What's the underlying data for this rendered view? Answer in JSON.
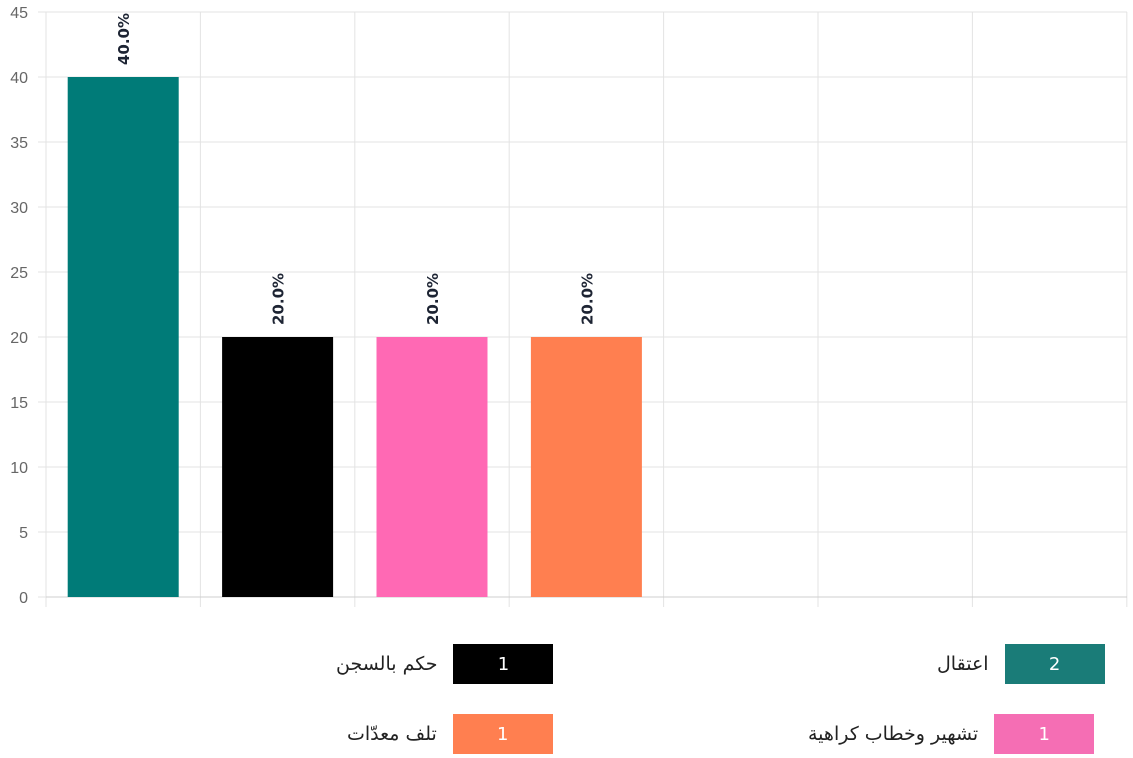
{
  "chart_data": {
    "type": "bar",
    "categories": [
      "اعتقال",
      "حكم بالسجن",
      "تشهير وخطاب كراهية",
      "تلف معدّات"
    ],
    "values": [
      40,
      20,
      20,
      20
    ],
    "counts": [
      2,
      1,
      1,
      1
    ],
    "data_labels": [
      "40.0%",
      "20.0%",
      "20.0%",
      "20.0%"
    ],
    "colors": [
      "#007b78",
      "#000000",
      "#ff69b4",
      "#ff7f50"
    ],
    "ylim": [
      0,
      45
    ],
    "yticks": [
      "0",
      "5",
      "10",
      "15",
      "20",
      "25",
      "30",
      "35",
      "40",
      "45"
    ],
    "grid": true,
    "legend_position": "bottom"
  },
  "legend": {
    "items": [
      {
        "label": "اعتقال",
        "count": "2",
        "color": "#1a7c78"
      },
      {
        "label": "حكم بالسجن",
        "count": "1",
        "color": "#000000"
      },
      {
        "label": "تشهير وخطاب كراهية",
        "count": "1",
        "color": "#f56eb4"
      },
      {
        "label": "تلف معدّات",
        "count": "1",
        "color": "#ff7f50"
      }
    ]
  }
}
